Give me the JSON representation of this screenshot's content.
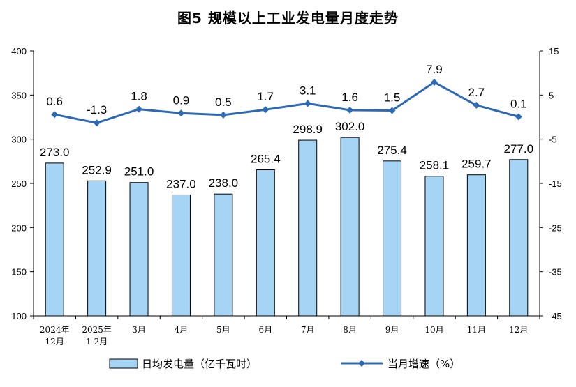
{
  "chart_data": {
    "type": "bar+line",
    "title": "图5  规模以上工业发电量月度走势",
    "categories": [
      [
        "2024年",
        "12月"
      ],
      [
        "2025年",
        "1-2月"
      ],
      [
        "3月"
      ],
      [
        "4月"
      ],
      [
        "5月"
      ],
      [
        "6月"
      ],
      [
        "7月"
      ],
      [
        "8月"
      ],
      [
        "9月"
      ],
      [
        "10月"
      ],
      [
        "11月"
      ],
      [
        "12月"
      ]
    ],
    "bar_series": {
      "name": "日均发电量（亿千瓦时）",
      "axis": "left",
      "values": [
        273.0,
        252.9,
        251.0,
        237.0,
        238.0,
        265.4,
        298.9,
        302.0,
        275.4,
        258.1,
        259.7,
        277.0
      ],
      "labels": [
        "273.0",
        "252.9",
        "251.0",
        "237.0",
        "238.0",
        "265.4",
        "298.9",
        "302.0",
        "275.4",
        "258.1",
        "259.7",
        "277.0"
      ],
      "color": "#a6d4f5",
      "stroke": "#000000"
    },
    "line_series": {
      "name": "当月增速（%）",
      "axis": "right",
      "values": [
        0.6,
        -1.3,
        1.8,
        0.9,
        0.5,
        1.7,
        3.1,
        1.6,
        1.5,
        7.9,
        2.7,
        0.1
      ],
      "labels": [
        "0.6",
        "-1.3",
        "1.8",
        "0.9",
        "0.5",
        "1.7",
        "3.1",
        "1.6",
        "1.5",
        "7.9",
        "2.7",
        "0.1"
      ],
      "color": "#2e6ab4",
      "marker": "diamond"
    },
    "y_left": {
      "range": [
        100,
        400
      ],
      "ticks": [
        "100",
        "150",
        "200",
        "250",
        "300",
        "350",
        "400"
      ]
    },
    "y_right": {
      "range": [
        -45,
        15
      ],
      "ticks": [
        "-45",
        "-35",
        "-25",
        "-15",
        "-5",
        "5",
        "15"
      ]
    },
    "grid": false,
    "legend": "bottom"
  }
}
